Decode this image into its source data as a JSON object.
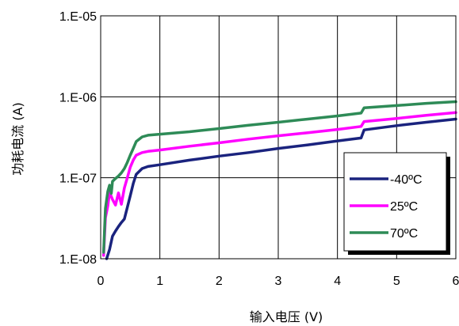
{
  "chart_data": {
    "type": "line",
    "title": "",
    "xlabel": "输入电压 (V)",
    "ylabel": "功耗电流 (A)",
    "x_scale": "linear",
    "y_scale": "log",
    "xlim": [
      0,
      6
    ],
    "ylim": [
      1e-08,
      1e-05
    ],
    "x_ticks": [
      0,
      1,
      2,
      3,
      4,
      5,
      6
    ],
    "x_tick_labels": [
      "0",
      "1",
      "2",
      "3",
      "4",
      "5",
      "6"
    ],
    "y_ticks": [
      1e-08,
      1e-07,
      1e-06,
      1e-05
    ],
    "y_tick_labels": [
      "1.E-08",
      "1.E-07",
      "1.E-06",
      "1.E-05"
    ],
    "grid": true,
    "legend_position": "bottom-right",
    "series": [
      {
        "name": "-40ºC",
        "color": "#1a237e",
        "points": [
          [
            0.1,
            1e-08
          ],
          [
            0.15,
            1.3e-08
          ],
          [
            0.2,
            1.9e-08
          ],
          [
            0.25,
            2.2e-08
          ],
          [
            0.3,
            2.5e-08
          ],
          [
            0.35,
            2.8e-08
          ],
          [
            0.4,
            3.1e-08
          ],
          [
            0.45,
            4.3e-08
          ],
          [
            0.5,
            6e-08
          ],
          [
            0.55,
            8.5e-08
          ],
          [
            0.6,
            1.1e-07
          ],
          [
            0.7,
            1.3e-07
          ],
          [
            0.8,
            1.38e-07
          ],
          [
            1.0,
            1.45e-07
          ],
          [
            1.5,
            1.65e-07
          ],
          [
            2.0,
            1.85e-07
          ],
          [
            2.5,
            2.05e-07
          ],
          [
            3.0,
            2.3e-07
          ],
          [
            3.5,
            2.55e-07
          ],
          [
            4.0,
            2.85e-07
          ],
          [
            4.4,
            3.1e-07
          ],
          [
            4.45,
            3.9e-07
          ],
          [
            5.0,
            4.4e-07
          ],
          [
            5.5,
            4.85e-07
          ],
          [
            6.0,
            5.3e-07
          ]
        ]
      },
      {
        "name": "25ºC",
        "color": "#ff00ff",
        "points": [
          [
            0.05,
            1.1e-08
          ],
          [
            0.08,
            3.2e-08
          ],
          [
            0.12,
            4.5e-08
          ],
          [
            0.15,
            6.6e-08
          ],
          [
            0.2,
            5.4e-08
          ],
          [
            0.25,
            4.6e-08
          ],
          [
            0.3,
            6.5e-08
          ],
          [
            0.35,
            4.7e-08
          ],
          [
            0.4,
            7.5e-08
          ],
          [
            0.45,
            1e-07
          ],
          [
            0.5,
            1.35e-07
          ],
          [
            0.55,
            1.65e-07
          ],
          [
            0.6,
            1.9e-07
          ],
          [
            0.7,
            2.05e-07
          ],
          [
            0.8,
            2.12e-07
          ],
          [
            1.0,
            2.2e-07
          ],
          [
            1.5,
            2.45e-07
          ],
          [
            2.0,
            2.7e-07
          ],
          [
            2.5,
            3e-07
          ],
          [
            3.0,
            3.3e-07
          ],
          [
            3.5,
            3.6e-07
          ],
          [
            4.0,
            3.95e-07
          ],
          [
            4.4,
            4.3e-07
          ],
          [
            4.45,
            4.95e-07
          ],
          [
            5.0,
            5.4e-07
          ],
          [
            5.5,
            5.9e-07
          ],
          [
            6.0,
            6.4e-07
          ]
        ]
      },
      {
        "name": "70ºC",
        "color": "#2e8b57",
        "points": [
          [
            0.05,
            1.2e-08
          ],
          [
            0.08,
            4.2e-08
          ],
          [
            0.12,
            6.8e-08
          ],
          [
            0.15,
            8.1e-08
          ],
          [
            0.18,
            6.4e-08
          ],
          [
            0.2,
            9e-08
          ],
          [
            0.25,
            9.8e-08
          ],
          [
            0.3,
            1.05e-07
          ],
          [
            0.35,
            1.15e-07
          ],
          [
            0.4,
            1.3e-07
          ],
          [
            0.45,
            1.55e-07
          ],
          [
            0.5,
            1.9e-07
          ],
          [
            0.55,
            2.3e-07
          ],
          [
            0.6,
            2.8e-07
          ],
          [
            0.7,
            3.2e-07
          ],
          [
            0.8,
            3.35e-07
          ],
          [
            1.0,
            3.45e-07
          ],
          [
            1.5,
            3.7e-07
          ],
          [
            2.0,
            4.05e-07
          ],
          [
            2.5,
            4.45e-07
          ],
          [
            3.0,
            4.85e-07
          ],
          [
            3.5,
            5.3e-07
          ],
          [
            4.0,
            5.8e-07
          ],
          [
            4.4,
            6.3e-07
          ],
          [
            4.45,
            7.3e-07
          ],
          [
            5.0,
            7.8e-07
          ],
          [
            5.5,
            8.3e-07
          ],
          [
            6.0,
            8.7e-07
          ]
        ]
      }
    ]
  }
}
